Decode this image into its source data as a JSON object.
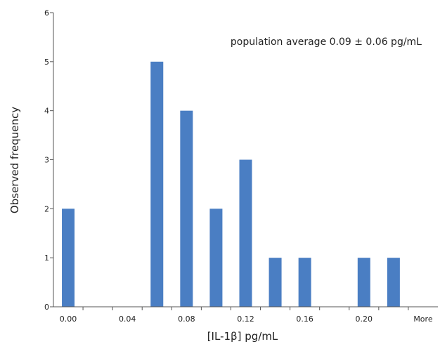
{
  "chart_data": {
    "type": "bar",
    "title": "",
    "xlabel": "[IL-1β] pg/mL",
    "ylabel": "Observed frequency",
    "annotation": "population average 0.09 ± 0.06 pg/mL",
    "categories": [
      "0.00",
      "0.02",
      "0.04",
      "0.06",
      "0.08",
      "0.10",
      "0.12",
      "0.14",
      "0.16",
      "0.18",
      "0.20",
      "0.22",
      "More"
    ],
    "x_tick_labels": [
      "0.00",
      "",
      "0.04",
      "",
      "0.08",
      "",
      "0.12",
      "",
      "0.16",
      "",
      "0.20",
      "",
      "More"
    ],
    "values": [
      2,
      0,
      0,
      5,
      4,
      2,
      3,
      1,
      1,
      0,
      1,
      1,
      0
    ],
    "ylim": [
      0,
      6
    ],
    "yticks": [
      "0",
      "1",
      "2",
      "3",
      "4",
      "5",
      "6"
    ],
    "grid": false,
    "bar_color": "#4a7ec3"
  }
}
